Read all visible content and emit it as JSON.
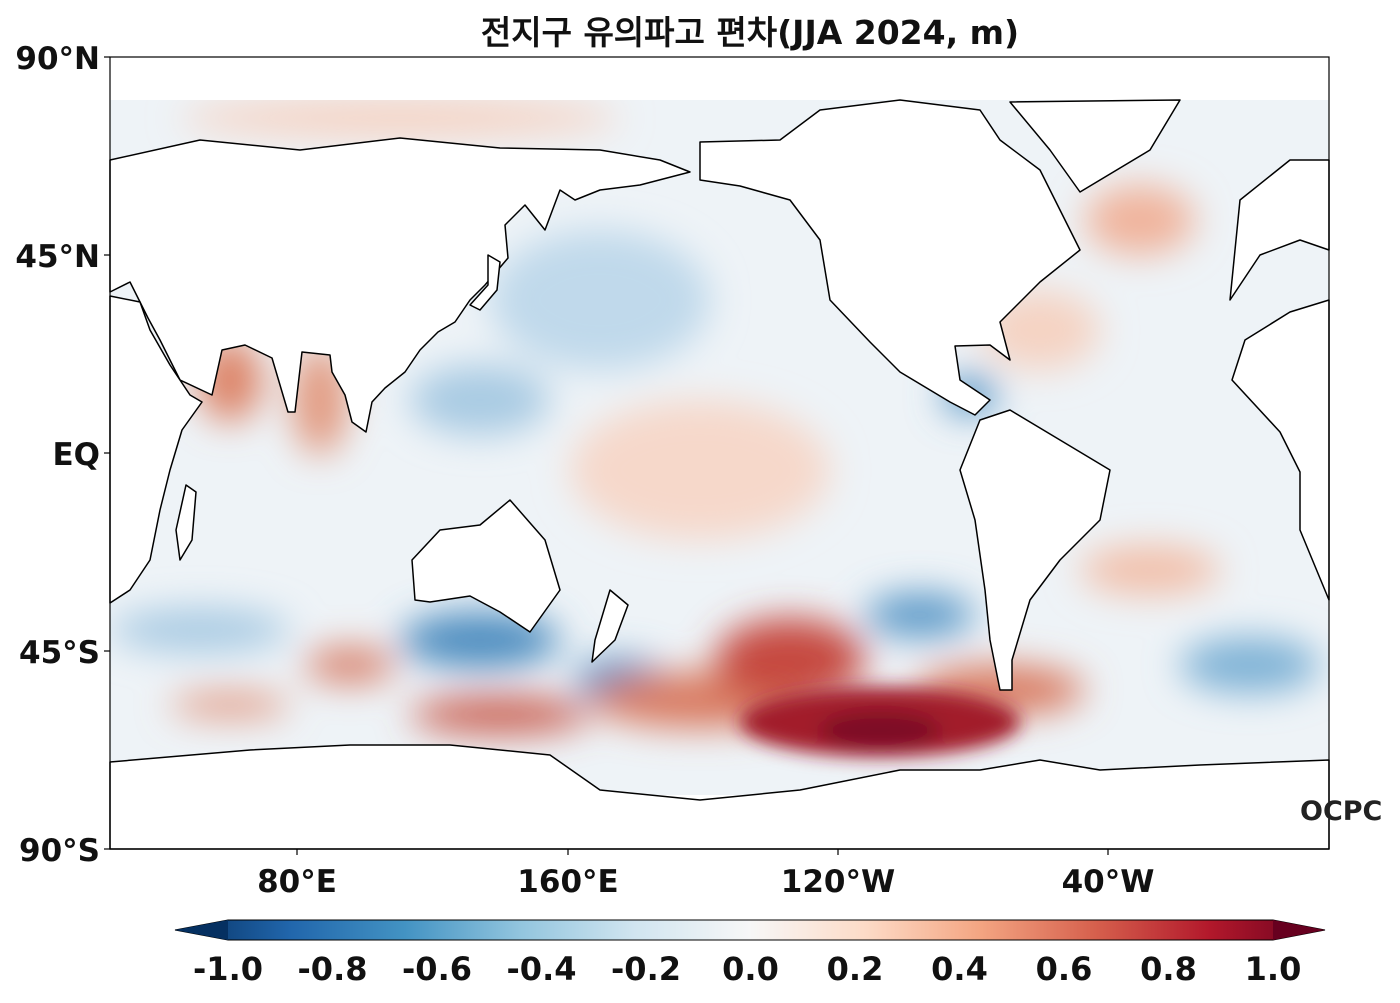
{
  "title": "전지구 유의파고 편차(JJA 2024, m)",
  "y_axis_labels": [
    "90°N",
    "45°N",
    "EQ",
    "45°S",
    "90°S"
  ],
  "x_axis_labels": [
    "80°E",
    "160°E",
    "120°W",
    "40°W"
  ],
  "colorbar": {
    "min": -1.0,
    "max": 1.0,
    "tick_labels": [
      "-1.0",
      "-0.8",
      "-0.6",
      "-0.4",
      "-0.2",
      "0.0",
      "0.2",
      "0.4",
      "0.6",
      "0.8",
      "1.0"
    ],
    "colors": [
      "#053061",
      "#2166ac",
      "#4393c3",
      "#92c5de",
      "#d1e5f0",
      "#f7f7f7",
      "#fddbc7",
      "#f4a582",
      "#d6604d",
      "#b2182b",
      "#67001f"
    ]
  },
  "logo": "OCPC"
}
